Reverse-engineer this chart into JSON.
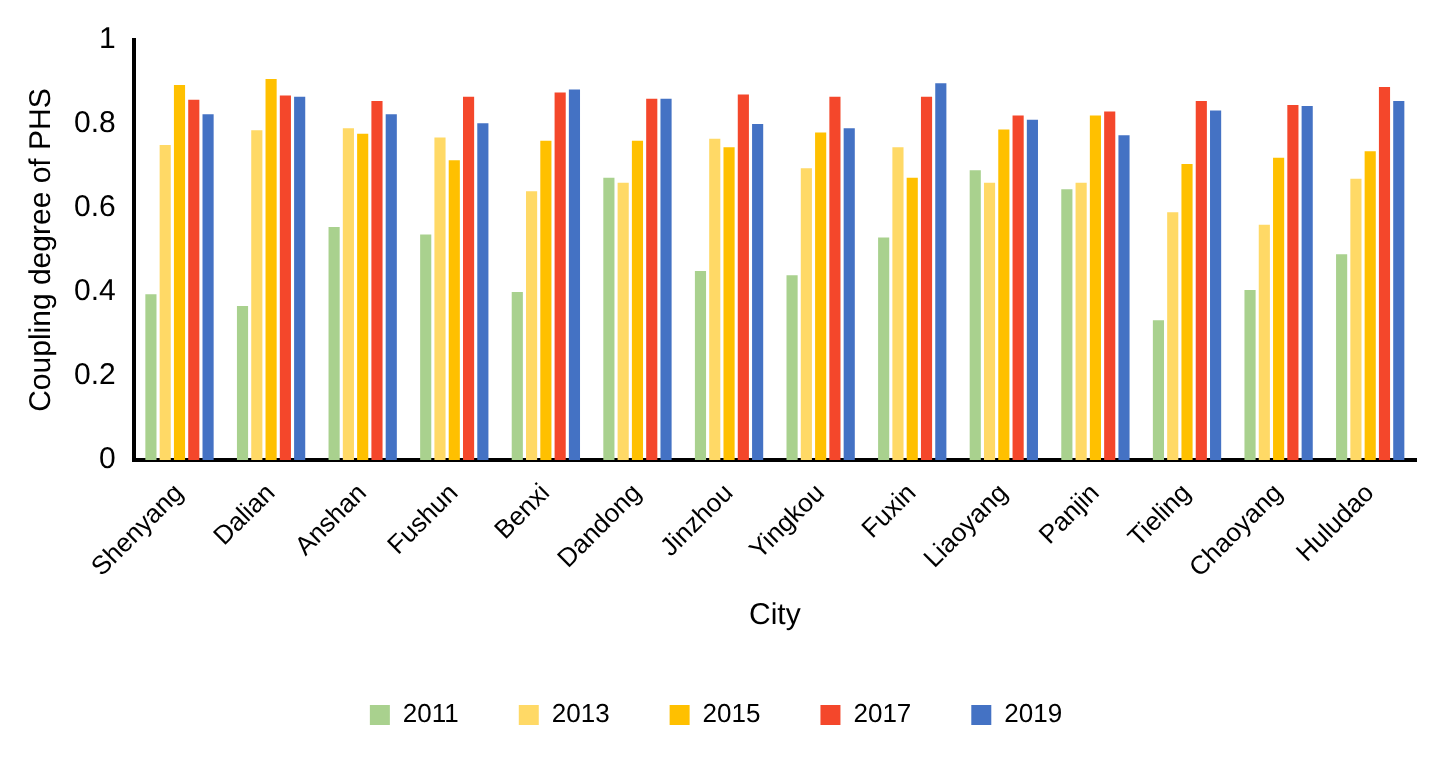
{
  "chart_data": {
    "type": "bar",
    "xlabel": "City",
    "ylabel": "Coupling degree of PHS",
    "categories": [
      "Shenyang",
      "Dalian",
      "Anshan",
      "Fushun",
      "Benxi",
      "Dandong",
      "Jinzhou",
      "Yingkou",
      "Fuxin",
      "Liaoyang",
      "Panjin",
      "Tieling",
      "Chaoyang",
      "Huludao"
    ],
    "series": [
      {
        "name": "2011",
        "color": "#a9d18e",
        "values": [
          0.395,
          0.367,
          0.555,
          0.537,
          0.4,
          0.672,
          0.45,
          0.44,
          0.53,
          0.69,
          0.645,
          0.333,
          0.405,
          0.49
        ]
      },
      {
        "name": "2013",
        "color": "#ffd966",
        "values": [
          0.75,
          0.785,
          0.79,
          0.768,
          0.64,
          0.66,
          0.765,
          0.695,
          0.745,
          0.66,
          0.66,
          0.59,
          0.56,
          0.67
        ]
      },
      {
        "name": "2015",
        "color": "#ffc000",
        "values": [
          0.893,
          0.907,
          0.777,
          0.714,
          0.76,
          0.76,
          0.745,
          0.78,
          0.672,
          0.787,
          0.82,
          0.705,
          0.72,
          0.735
        ]
      },
      {
        "name": "2017",
        "color": "#f4472b",
        "values": [
          0.858,
          0.868,
          0.855,
          0.865,
          0.875,
          0.86,
          0.87,
          0.865,
          0.865,
          0.82,
          0.83,
          0.855,
          0.845,
          0.888
        ]
      },
      {
        "name": "2019",
        "color": "#4472c4",
        "values": [
          0.823,
          0.865,
          0.823,
          0.802,
          0.882,
          0.86,
          0.8,
          0.79,
          0.897,
          0.81,
          0.773,
          0.832,
          0.843,
          0.855
        ]
      }
    ],
    "ylim": [
      0,
      1
    ],
    "yticks": [
      0,
      0.2,
      0.4,
      0.6,
      0.8,
      1
    ],
    "grid": false,
    "legend": "bottom"
  }
}
